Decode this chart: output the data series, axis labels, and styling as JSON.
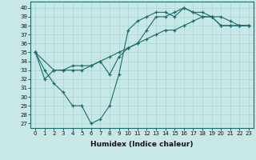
{
  "xlabel": "Humidex (Indice chaleur)",
  "bg_color": "#c8e8e8",
  "line_color": "#1a6b6b",
  "xlim": [
    -0.5,
    23.5
  ],
  "ylim": [
    26.5,
    40.7
  ],
  "yticks": [
    27,
    28,
    29,
    30,
    31,
    32,
    33,
    34,
    35,
    36,
    37,
    38,
    39,
    40
  ],
  "xticks": [
    0,
    1,
    2,
    3,
    4,
    5,
    6,
    7,
    8,
    9,
    10,
    11,
    12,
    13,
    14,
    15,
    16,
    17,
    18,
    19,
    20,
    21,
    22,
    23
  ],
  "line1_x": [
    0,
    1,
    2,
    3,
    4,
    5,
    6,
    7,
    8,
    9,
    10,
    11,
    12,
    13,
    14,
    15,
    16,
    17,
    18,
    19,
    20,
    21,
    22,
    23
  ],
  "line1_y": [
    35.0,
    33.0,
    31.5,
    30.5,
    29.0,
    29.0,
    27.0,
    27.5,
    29.0,
    32.5,
    37.5,
    38.5,
    39.0,
    39.5,
    39.5,
    39.0,
    40.0,
    39.5,
    39.5,
    39.0,
    38.0,
    38.0,
    38.0,
    38.0
  ],
  "line2_x": [
    0,
    2,
    3,
    4,
    5,
    6,
    7,
    8,
    9,
    10,
    11,
    12,
    13,
    14,
    15,
    16,
    17,
    18,
    19,
    20,
    21,
    22,
    23
  ],
  "line2_y": [
    35.0,
    33.0,
    33.0,
    33.0,
    33.0,
    33.5,
    34.0,
    34.5,
    35.0,
    35.5,
    36.0,
    36.5,
    37.0,
    37.5,
    37.5,
    38.0,
    38.5,
    39.0,
    39.0,
    39.0,
    38.5,
    38.0,
    38.0
  ],
  "line3_x": [
    0,
    1,
    2,
    3,
    4,
    5,
    6,
    7,
    8,
    9,
    10,
    11,
    12,
    13,
    14,
    15,
    16,
    17,
    18,
    19,
    20,
    21,
    22,
    23
  ],
  "line3_y": [
    35.0,
    32.0,
    33.0,
    33.0,
    33.5,
    33.5,
    33.5,
    34.0,
    32.5,
    34.5,
    35.5,
    36.0,
    37.5,
    39.0,
    39.0,
    39.5,
    40.0,
    39.5,
    39.0,
    39.0,
    38.0,
    38.0,
    38.0,
    38.0
  ]
}
